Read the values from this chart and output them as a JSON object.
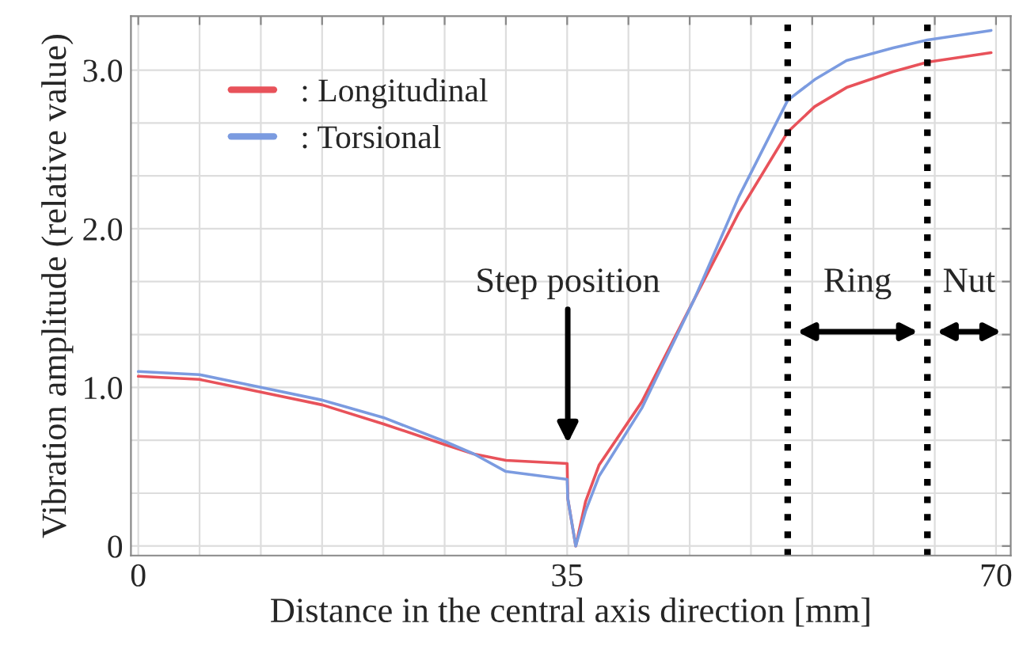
{
  "chart_data": {
    "type": "line",
    "xlabel": "Distance in the central axis direction [mm]",
    "ylabel": "Vibration amplitude (relative value)",
    "xlim": [
      -0.6,
      71.2
    ],
    "ylim": [
      -0.06,
      3.34
    ],
    "xticks": [
      0,
      {
        "value": 5,
        "label": null
      },
      {
        "value": 10,
        "label": null
      },
      {
        "value": 15,
        "label": null
      },
      {
        "value": 20,
        "label": null
      },
      {
        "value": 25,
        "label": null
      },
      {
        "value": 30,
        "label": null
      },
      35,
      {
        "value": 40,
        "label": null
      },
      {
        "value": 45,
        "label": null
      },
      {
        "value": 50,
        "label": null
      },
      {
        "value": 55,
        "label": null
      },
      {
        "value": 60,
        "label": null
      },
      {
        "value": 65,
        "label": null
      },
      70
    ],
    "yticks": [
      {
        "value": 0,
        "label": "0"
      },
      {
        "value": 0.333,
        "label": null
      },
      {
        "value": 0.667,
        "label": null
      },
      {
        "value": 1,
        "label": "1.0"
      },
      {
        "value": 1.333,
        "label": null
      },
      {
        "value": 1.667,
        "label": null
      },
      {
        "value": 2,
        "label": "2.0"
      },
      {
        "value": 2.333,
        "label": null
      },
      {
        "value": 2.667,
        "label": null
      },
      {
        "value": 3,
        "label": "3.0"
      }
    ],
    "grid": true,
    "legend": "top left",
    "marker": "none",
    "line_style": "solid",
    "series": [
      {
        "name": ": Longitudinal",
        "color": "#e8525a",
        "x": [
          0,
          5,
          10,
          15,
          20,
          25,
          27.4,
          30,
          35,
          35.05,
          35.7,
          36.5,
          37.6,
          41.1,
          45.4,
          49,
          53,
          55.2,
          57.8,
          61.6,
          64.4,
          69.6
        ],
        "values": [
          1.07,
          1.05,
          0.97,
          0.89,
          0.77,
          0.64,
          0.58,
          0.54,
          0.52,
          0.3,
          0.0,
          0.28,
          0.51,
          0.91,
          1.56,
          2.1,
          2.61,
          2.77,
          2.89,
          2.99,
          3.05,
          3.11
        ]
      },
      {
        "name": ": Torsional",
        "color": "#7b9be0",
        "x": [
          0,
          5,
          10,
          15,
          20,
          25,
          27.4,
          30,
          35,
          35.05,
          35.7,
          36.5,
          37.6,
          41.1,
          45.4,
          49,
          53,
          55.2,
          57.8,
          61.6,
          64.4,
          69.6
        ],
        "values": [
          1.1,
          1.08,
          1.0,
          0.92,
          0.81,
          0.66,
          0.58,
          0.47,
          0.42,
          0.3,
          0.0,
          0.22,
          0.44,
          0.87,
          1.56,
          2.2,
          2.81,
          2.94,
          3.06,
          3.14,
          3.19,
          3.25
        ]
      }
    ],
    "ref_lines": [
      {
        "axis": "x",
        "value": 53,
        "color": "#000000",
        "line_style": "dotted"
      },
      {
        "axis": "x",
        "value": 64.4,
        "color": "#000000",
        "line_style": "dotted"
      }
    ],
    "annotations": [
      "Step position",
      "Ring",
      "Nut"
    ]
  }
}
